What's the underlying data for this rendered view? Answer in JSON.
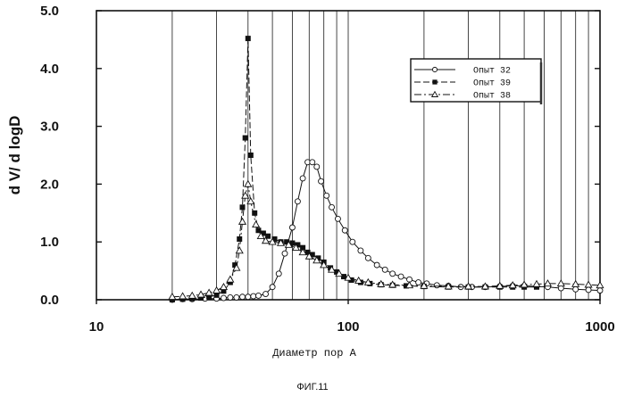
{
  "figure_caption": "ФИГ.11",
  "chart_data": {
    "type": "line",
    "xscale": "log",
    "xlabel": "Диаметр пор А",
    "ylabel": "d V/ d logD",
    "xlim": [
      10,
      1000
    ],
    "ylim": [
      0,
      5
    ],
    "xticks": [
      {
        "value": 10,
        "label": "10"
      },
      {
        "value": 100,
        "label": "100"
      },
      {
        "value": 1000,
        "label": "1000"
      }
    ],
    "yticks": [
      {
        "value": 0,
        "label": "0.0"
      },
      {
        "value": 1,
        "label": "1.0"
      },
      {
        "value": 2,
        "label": "2.0"
      },
      {
        "value": 3,
        "label": "3.0"
      },
      {
        "value": 4,
        "label": "4.0"
      },
      {
        "value": 5,
        "label": "5.0"
      }
    ],
    "vertical_gridlines": [
      20,
      30,
      40,
      50,
      60,
      70,
      80,
      90,
      200,
      300,
      400,
      500,
      600,
      700,
      800,
      900
    ],
    "legend_position": "top-right",
    "series": [
      {
        "name": "Опыт 32",
        "marker": "circle-open",
        "line": "solid",
        "points": [
          [
            20,
            0.0
          ],
          [
            22,
            0.01
          ],
          [
            24,
            0.01
          ],
          [
            27,
            0.02
          ],
          [
            30,
            0.02
          ],
          [
            32,
            0.03
          ],
          [
            34,
            0.04
          ],
          [
            36,
            0.04
          ],
          [
            38,
            0.05
          ],
          [
            40,
            0.05
          ],
          [
            42,
            0.06
          ],
          [
            44,
            0.07
          ],
          [
            47,
            0.1
          ],
          [
            50,
            0.22
          ],
          [
            53,
            0.45
          ],
          [
            56,
            0.8
          ],
          [
            60,
            1.25
          ],
          [
            63,
            1.7
          ],
          [
            66,
            2.1
          ],
          [
            69,
            2.38
          ],
          [
            72,
            2.38
          ],
          [
            75,
            2.3
          ],
          [
            78,
            2.05
          ],
          [
            82,
            1.8
          ],
          [
            86,
            1.6
          ],
          [
            91,
            1.4
          ],
          [
            97,
            1.2
          ],
          [
            104,
            1.0
          ],
          [
            112,
            0.85
          ],
          [
            120,
            0.72
          ],
          [
            130,
            0.6
          ],
          [
            140,
            0.52
          ],
          [
            150,
            0.45
          ],
          [
            162,
            0.4
          ],
          [
            175,
            0.35
          ],
          [
            190,
            0.3
          ],
          [
            205,
            0.28
          ],
          [
            225,
            0.25
          ],
          [
            250,
            0.24
          ],
          [
            280,
            0.22
          ],
          [
            310,
            0.22
          ],
          [
            350,
            0.22
          ],
          [
            400,
            0.23
          ],
          [
            450,
            0.24
          ],
          [
            500,
            0.24
          ],
          [
            560,
            0.23
          ],
          [
            620,
            0.22
          ],
          [
            700,
            0.2
          ],
          [
            800,
            0.18
          ],
          [
            900,
            0.17
          ],
          [
            1000,
            0.16
          ]
        ]
      },
      {
        "name": "Опыт 39",
        "marker": "square-filled",
        "line": "dashed",
        "points": [
          [
            20,
            0.0
          ],
          [
            22,
            0.01
          ],
          [
            24,
            0.02
          ],
          [
            26,
            0.03
          ],
          [
            28,
            0.05
          ],
          [
            30,
            0.08
          ],
          [
            32,
            0.15
          ],
          [
            34,
            0.3
          ],
          [
            35.5,
            0.6
          ],
          [
            37,
            1.05
          ],
          [
            38,
            1.6
          ],
          [
            39,
            2.8
          ],
          [
            40,
            4.52
          ],
          [
            41,
            2.5
          ],
          [
            42.5,
            1.5
          ],
          [
            44,
            1.2
          ],
          [
            46,
            1.15
          ],
          [
            48,
            1.1
          ],
          [
            51,
            1.05
          ],
          [
            54,
            1.0
          ],
          [
            57,
            1.0
          ],
          [
            60,
            0.98
          ],
          [
            63,
            0.95
          ],
          [
            66,
            0.9
          ],
          [
            69,
            0.82
          ],
          [
            72,
            0.78
          ],
          [
            76,
            0.72
          ],
          [
            80,
            0.65
          ],
          [
            85,
            0.55
          ],
          [
            90,
            0.48
          ],
          [
            96,
            0.4
          ],
          [
            103,
            0.34
          ],
          [
            112,
            0.3
          ],
          [
            122,
            0.28
          ],
          [
            135,
            0.26
          ],
          [
            150,
            0.25
          ],
          [
            170,
            0.24
          ],
          [
            200,
            0.23
          ],
          [
            250,
            0.22
          ],
          [
            300,
            0.22
          ],
          [
            350,
            0.22
          ],
          [
            400,
            0.22
          ],
          [
            450,
            0.22
          ],
          [
            500,
            0.22
          ],
          [
            560,
            0.22
          ]
        ]
      },
      {
        "name": "Опыт 38",
        "marker": "triangle-open",
        "line": "dash-dot",
        "points": [
          [
            20,
            0.05
          ],
          [
            22,
            0.06
          ],
          [
            24,
            0.07
          ],
          [
            26,
            0.09
          ],
          [
            28,
            0.12
          ],
          [
            30,
            0.16
          ],
          [
            32,
            0.22
          ],
          [
            34,
            0.35
          ],
          [
            36,
            0.55
          ],
          [
            37,
            0.85
          ],
          [
            38,
            1.35
          ],
          [
            39,
            1.8
          ],
          [
            40,
            2.0
          ],
          [
            41,
            1.7
          ],
          [
            43,
            1.3
          ],
          [
            45,
            1.1
          ],
          [
            47,
            1.02
          ],
          [
            50,
            1.0
          ],
          [
            54,
            0.98
          ],
          [
            58,
            0.95
          ],
          [
            62,
            0.9
          ],
          [
            66,
            0.82
          ],
          [
            70,
            0.75
          ],
          [
            75,
            0.68
          ],
          [
            80,
            0.6
          ],
          [
            86,
            0.52
          ],
          [
            92,
            0.45
          ],
          [
            100,
            0.38
          ],
          [
            110,
            0.33
          ],
          [
            120,
            0.3
          ],
          [
            135,
            0.27
          ],
          [
            150,
            0.26
          ],
          [
            175,
            0.25
          ],
          [
            200,
            0.24
          ],
          [
            250,
            0.23
          ],
          [
            300,
            0.23
          ],
          [
            350,
            0.23
          ],
          [
            400,
            0.24
          ],
          [
            450,
            0.25
          ],
          [
            500,
            0.26
          ],
          [
            560,
            0.27
          ],
          [
            620,
            0.28
          ],
          [
            700,
            0.28
          ],
          [
            800,
            0.27
          ],
          [
            900,
            0.26
          ],
          [
            1000,
            0.25
          ]
        ]
      }
    ]
  }
}
